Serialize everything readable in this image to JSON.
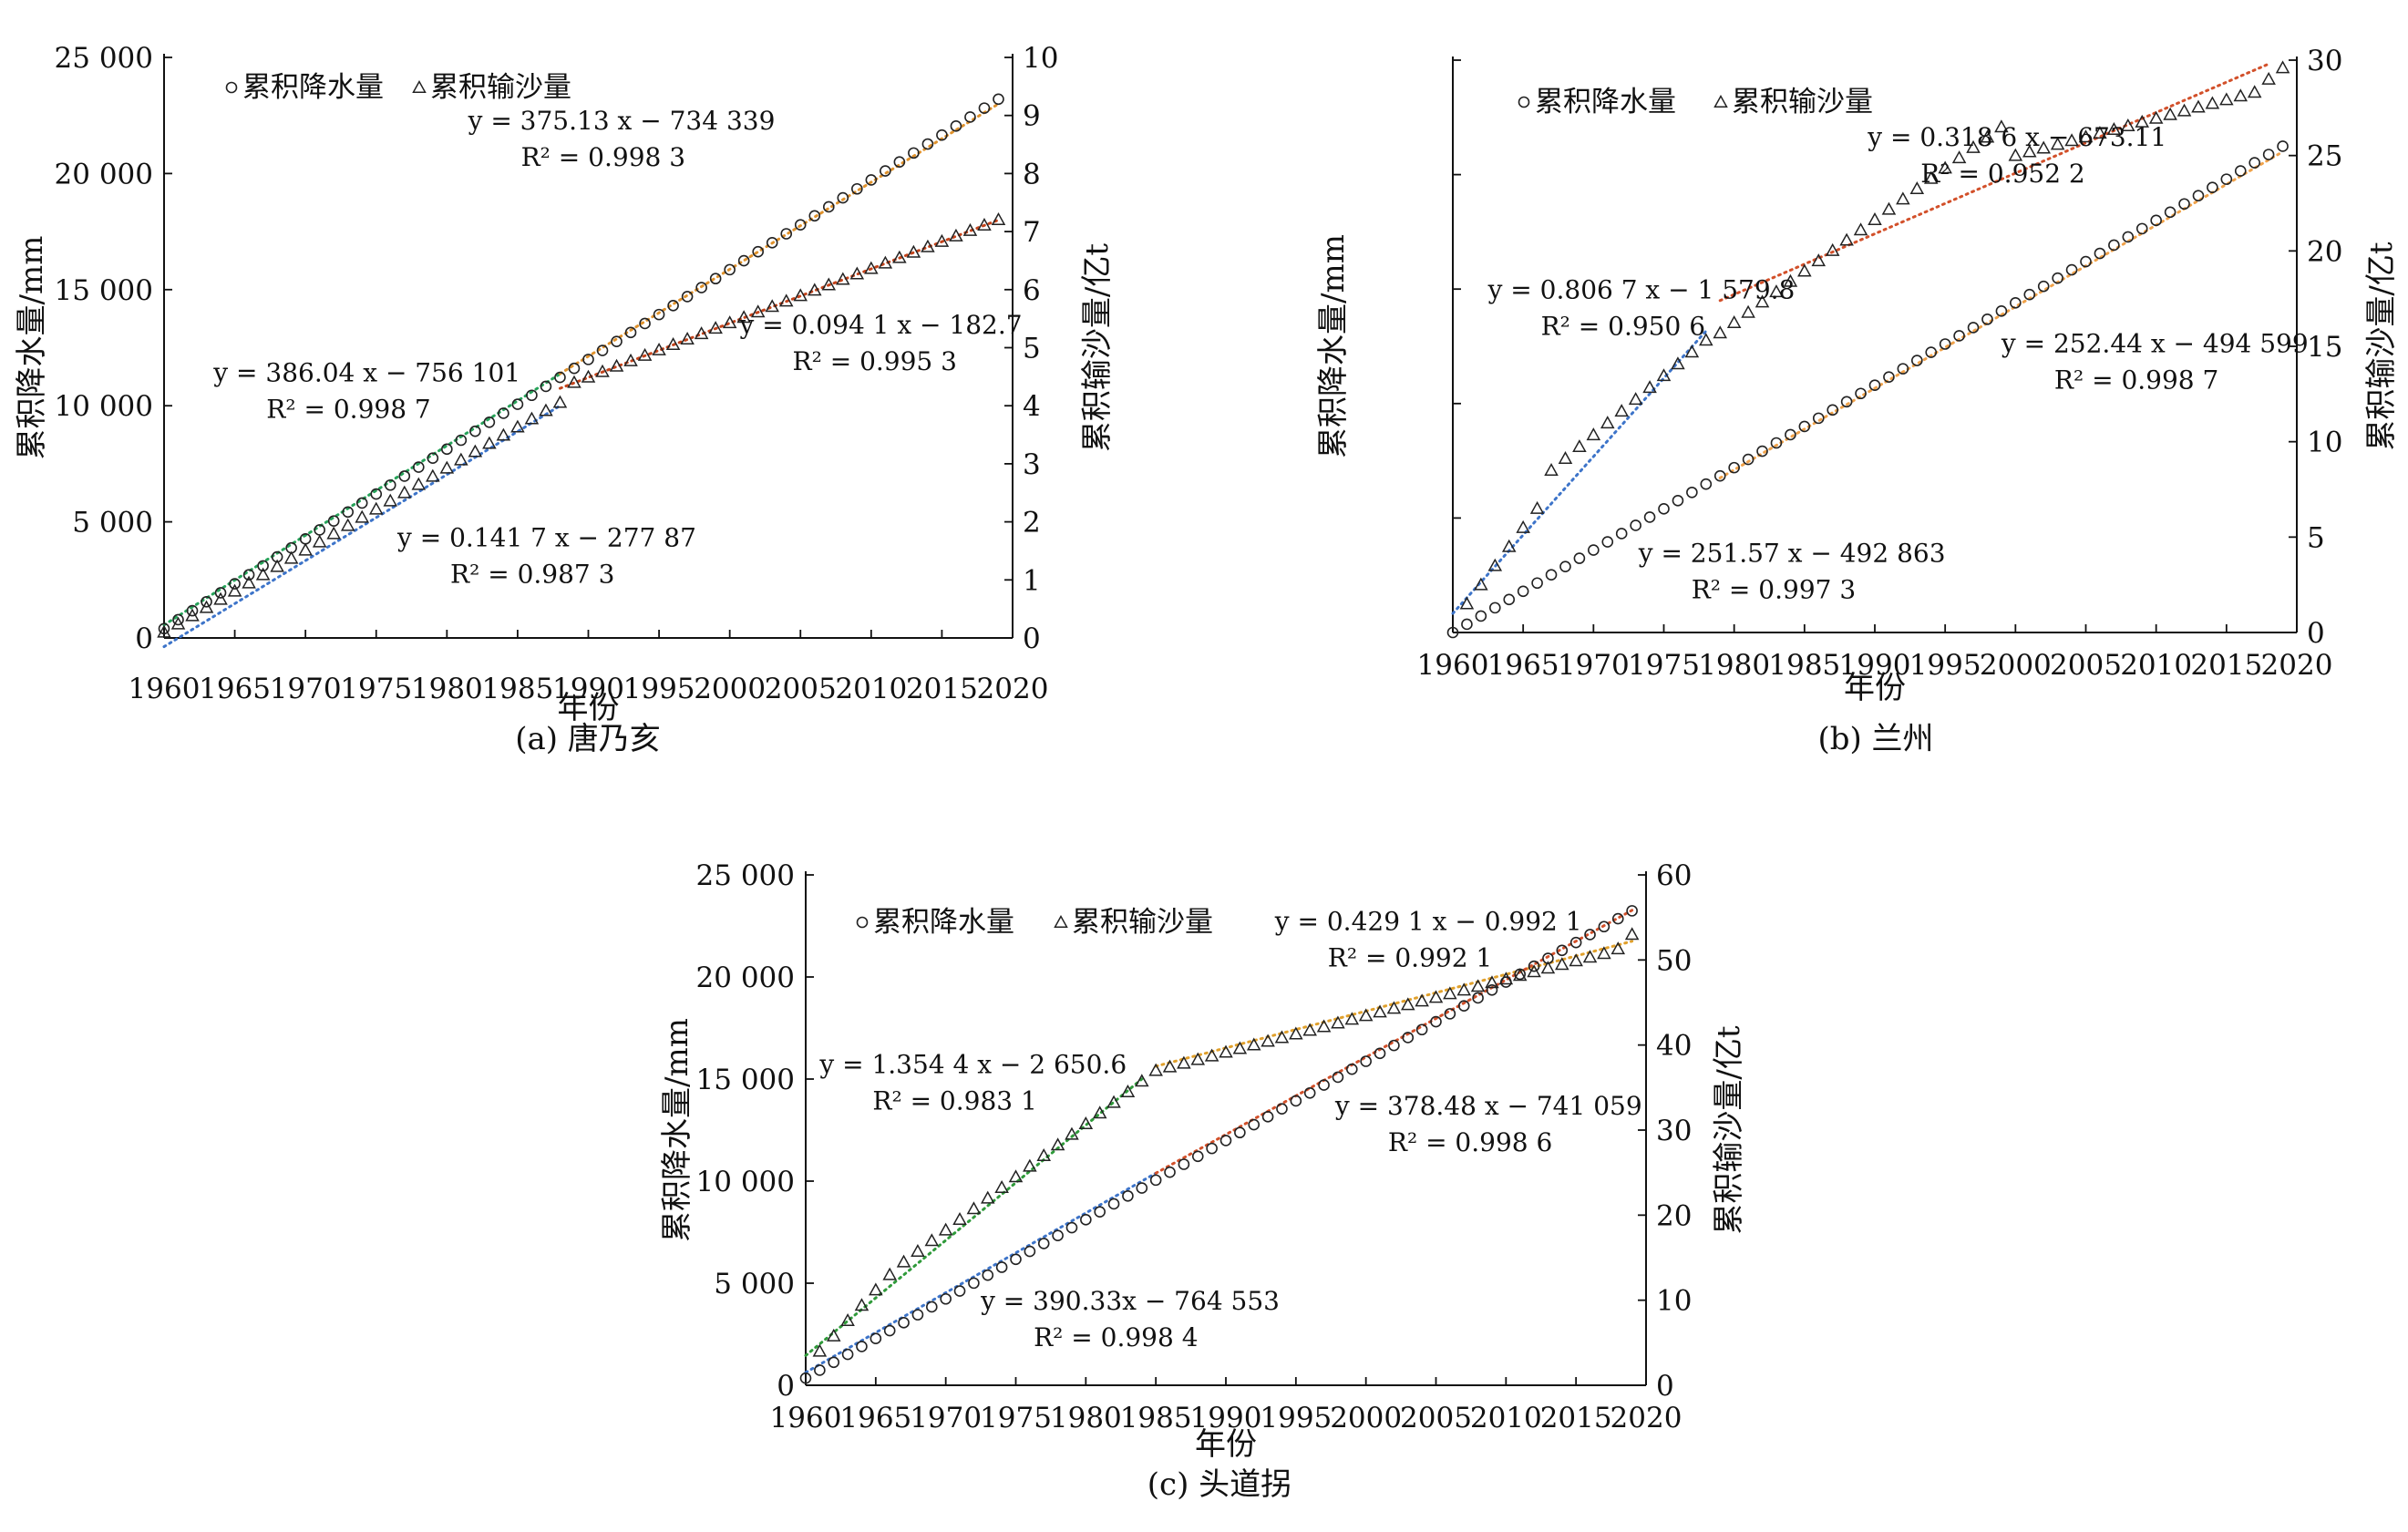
{
  "chart_data": [
    {
      "type": "scatter",
      "panel": "a",
      "caption": "(a) 唐乃亥",
      "xlabel": "年份",
      "ylabel_left": "累积降水量/mm",
      "ylabel_right": "累积输沙量/亿t",
      "x_range": [
        1960,
        2020
      ],
      "x_ticks": [
        "1960",
        "1965",
        "1970",
        "1975",
        "1980",
        "1985",
        "1990",
        "1995",
        "2000",
        "2005",
        "2010",
        "2015",
        "2020"
      ],
      "y_left_range": [
        0,
        25000
      ],
      "y_left_ticks": [
        "0",
        "5 000",
        "10 000",
        "15 000",
        "20 000",
        "25 000"
      ],
      "y_right_range": [
        0,
        10
      ],
      "y_right_ticks": [
        "0",
        "1",
        "2",
        "3",
        "4",
        "5",
        "6",
        "7",
        "8",
        "9",
        "10"
      ],
      "legend": [
        {
          "marker": "circle",
          "label": "累积降水量"
        },
        {
          "marker": "triangle",
          "label": "累积输沙量"
        }
      ],
      "series": [
        {
          "name": "累积降水量",
          "axis": "left",
          "marker": "circle",
          "segments": [
            {
              "start_year": 1960,
              "end_year": 2019,
              "start_value": 400,
              "slope": 386.5
            }
          ]
        },
        {
          "name": "累积输沙量",
          "axis": "right",
          "marker": "triangle",
          "segments": [
            {
              "start_year": 1960,
              "end_year": 1988,
              "start_value": 0.1,
              "slope": 0.1413
            },
            {
              "start_year": 1989,
              "end_year": 2019,
              "start_value": 4.4,
              "slope": 0.0935
            }
          ]
        }
      ],
      "fits": [
        {
          "axis": "left",
          "color": "#27a35a",
          "x1": 1960,
          "x2": 1988,
          "y1": 560,
          "y2": 11370
        },
        {
          "axis": "left",
          "color": "#e0922c",
          "x1": 1988,
          "x2": 2019,
          "y1": 11380,
          "y2": 23000
        },
        {
          "axis": "right",
          "color": "#3d74c9",
          "x1": 1960,
          "x2": 1988,
          "y1": -0.15,
          "y2": 4.0
        },
        {
          "axis": "right",
          "color": "#c4441c",
          "x1": 1988,
          "x2": 2019,
          "y1": 4.3,
          "y2": 7.2
        }
      ],
      "annotations": [
        {
          "eq": "y = 375.13 x − 734 339",
          "r2": "R² = 0.998 3",
          "anchor": [
            1981.5,
            21900
          ]
        },
        {
          "eq": "y = 0.094 1 x − 182.7",
          "r2": "R² = 0.995 3",
          "anchor": [
            2000.7,
            13100
          ]
        },
        {
          "eq": "y = 386.04 x − 756 101",
          "r2": "R² = 0.998 7",
          "anchor": [
            1963.5,
            11050
          ]
        },
        {
          "eq": "y = 0.141 7 x − 277 87",
          "r2": "R² = 0.987 3",
          "anchor": [
            1976.5,
            3950
          ]
        }
      ]
    },
    {
      "type": "scatter",
      "panel": "b",
      "caption": "(b) 兰州",
      "xlabel": "年份",
      "ylabel_left": "累积降水量/mm",
      "ylabel_right": "累积输沙量/亿t",
      "x_range": [
        1960,
        2020
      ],
      "x_ticks": [
        "1960",
        "1965",
        "1970",
        "1975",
        "1980",
        "1985",
        "1990",
        "1995",
        "2000",
        "2005",
        "2010",
        "2015",
        "2020"
      ],
      "y_left_range": [
        0,
        25000
      ],
      "y_left_ticks": [],
      "y_right_range": [
        0,
        30
      ],
      "y_right_ticks": [
        "0",
        "5",
        "10",
        "15",
        "20",
        "25",
        "30"
      ],
      "legend": [
        {
          "marker": "circle",
          "label": "累积降水量"
        },
        {
          "marker": "triangle",
          "label": "累积输沙量"
        }
      ],
      "series": [
        {
          "name": "累积降水量",
          "axis": "right",
          "marker": "circle",
          "segments": [
            {
              "start_year": 1960,
              "end_year": 2019,
              "start_value": 0,
              "slope": 0.432
            }
          ]
        },
        {
          "name": "累积输沙量",
          "axis": "right",
          "marker": "triangle",
          "segments": [
            {
              "start_year": 1961,
              "end_year": 1966,
              "start_value": 1.5,
              "slope": 1.0
            },
            {
              "start_year": 1967,
              "end_year": 1978,
              "start_value": 8.5,
              "slope": 0.62
            },
            {
              "start_year": 1979,
              "end_year": 1999,
              "start_value": 15.7,
              "slope": 0.54
            },
            {
              "start_year": 2000,
              "end_year": 2017,
              "start_value": 25.0,
              "slope": 0.195
            },
            {
              "start_year": 2018,
              "end_year": 2019,
              "start_value": 29.0,
              "slope": 0.6
            }
          ]
        }
      ],
      "fits": [
        {
          "axis": "right",
          "color": "#3d74c9",
          "x1": 1960,
          "x2": 1978,
          "y1": 1.0,
          "y2": 15.8
        },
        {
          "axis": "right",
          "color": "#d2502a",
          "x1": 1979,
          "x2": 2018,
          "y1": 17.4,
          "y2": 29.8
        },
        {
          "axis": "right",
          "color": "#f0a24a",
          "x1": 1979,
          "x2": 2019,
          "y1": 8.1,
          "y2": 25.2
        }
      ],
      "annotations": [
        {
          "eq": "y = 0.318 6 x − 673.11",
          "r2": "R² = 0.952 2",
          "anchor": [
            1989.5,
            25.5
          ]
        },
        {
          "eq": "y = 0.806 7 x − 1 579.8",
          "r2": "R² = 0.950 6",
          "anchor": [
            1962.5,
            17.5
          ]
        },
        {
          "eq": "y = 252.44 x − 494 599",
          "r2": "R² = 0.998 7",
          "anchor": [
            1999,
            14.7
          ]
        },
        {
          "eq": "y = 251.57 x − 492 863",
          "r2": "R² = 0.997 3",
          "anchor": [
            1973.2,
            3.7
          ]
        }
      ]
    },
    {
      "type": "scatter",
      "panel": "c",
      "caption": "(c) 头道拐",
      "xlabel": "年份",
      "ylabel_left": "累积降水量/mm",
      "ylabel_right": "累积输沙量/亿t",
      "x_range": [
        1960,
        2020
      ],
      "x_ticks": [
        "1960",
        "1965",
        "1970",
        "1975",
        "1980",
        "1985",
        "1990",
        "1995",
        "2000",
        "2005",
        "2010",
        "2015",
        "2020"
      ],
      "y_left_range": [
        0,
        25000
      ],
      "y_left_ticks": [
        "0",
        "5 000",
        "10 000",
        "15 000",
        "20 000",
        "25 000"
      ],
      "y_right_range": [
        0,
        60
      ],
      "y_right_ticks": [
        "0",
        "10",
        "20",
        "30",
        "40",
        "50",
        "60"
      ],
      "legend": [
        {
          "marker": "circle",
          "label": "累积降水量"
        },
        {
          "marker": "triangle",
          "label": "累积输沙量"
        }
      ],
      "series": [
        {
          "name": "累积降水量",
          "axis": "left",
          "marker": "circle",
          "segments": [
            {
              "start_year": 1960,
              "end_year": 2019,
              "start_value": 350,
              "slope": 388
            }
          ]
        },
        {
          "name": "累积输沙量",
          "axis": "right",
          "marker": "triangle",
          "segments": [
            {
              "start_year": 1961,
              "end_year": 1966,
              "start_value": 4.0,
              "slope": 1.8
            },
            {
              "start_year": 1967,
              "end_year": 1984,
              "start_value": 14.5,
              "slope": 1.25
            },
            {
              "start_year": 1985,
              "end_year": 2017,
              "start_value": 37.0,
              "slope": 0.43
            },
            {
              "start_year": 2018,
              "end_year": 2019,
              "start_value": 51.3,
              "slope": 1.7
            }
          ]
        }
      ],
      "fits": [
        {
          "axis": "right",
          "color": "#2f9a3a",
          "x1": 1960,
          "x2": 1984,
          "y1": 3.5,
          "y2": 36.0
        },
        {
          "axis": "right",
          "color": "#e0a02c",
          "x1": 1985,
          "x2": 2019,
          "y1": 37.5,
          "y2": 52.2
        },
        {
          "axis": "left",
          "color": "#3d74c9",
          "x1": 1960,
          "x2": 1985,
          "y1": 630,
          "y2": 10390
        },
        {
          "axis": "left",
          "color": "#d2502a",
          "x1": 1985,
          "x2": 2019,
          "y1": 10390,
          "y2": 23270
        }
      ],
      "annotations": [
        {
          "eq": "y = 0.429 1 x − 0.992 1",
          "r2": "R² = 0.992 1",
          "anchor": [
            1993.5,
            22300
          ]
        },
        {
          "eq": "y = 1.354 4 x − 2 650.6",
          "r2": "R² = 0.983 1",
          "anchor": [
            1961,
            15300
          ]
        },
        {
          "eq": "y = 378.48 x − 741 059",
          "r2": "R² = 0.998 6",
          "anchor": [
            1997.8,
            13250
          ]
        },
        {
          "eq": "y = 390.33x − 764 553",
          "r2": "R² = 0.998 4",
          "anchor": [
            1972.5,
            3700
          ]
        }
      ]
    }
  ]
}
